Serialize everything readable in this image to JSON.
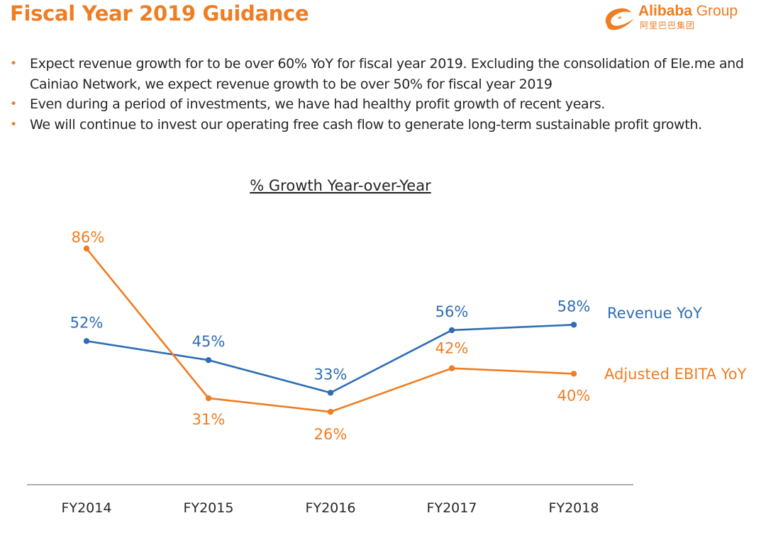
{
  "slide": {
    "title": "Fiscal Year 2019 Guidance",
    "logo": {
      "brand": "Alibaba",
      "group": "Group",
      "chinese": "阿里巴巴集团"
    },
    "bullets": [
      "Expect revenue growth for to be over 60% YoY for fiscal year 2019. Excluding the consolidation of Ele.me and Cainiao Network, we expect revenue growth to be over 50% for fiscal year 2019",
      "Even during a period of investments, we have had healthy profit growth of recent years.",
      "We will continue to invest our operating free cash flow to generate long-term sustainable profit growth."
    ]
  },
  "colors": {
    "accent": "#ef7d22",
    "revenue": "#2e6db5",
    "ebita": "#ef7d22",
    "text": "#262626"
  },
  "chart_data": {
    "type": "line",
    "title": "% Growth Year-over-Year",
    "categories": [
      "FY2014",
      "FY2015",
      "FY2016",
      "FY2017",
      "FY2018"
    ],
    "series": [
      {
        "name": "Revenue YoY",
        "values": [
          52,
          45,
          33,
          56,
          58
        ],
        "labels": [
          "52%",
          "45%",
          "33%",
          "56%",
          "58%"
        ],
        "color": "#2e6db5",
        "label_position": "above"
      },
      {
        "name": "Adjusted EBITA YoY",
        "values": [
          86,
          31,
          26,
          42,
          40
        ],
        "labels": [
          "86%",
          "31%",
          "26%",
          "42%",
          "40%"
        ],
        "color": "#ef7d22",
        "label_position": "mixed"
      }
    ],
    "xlabel": "",
    "ylabel": "",
    "ylim": [
      0,
      100
    ],
    "grid": false,
    "legend": "right, inline labels"
  }
}
